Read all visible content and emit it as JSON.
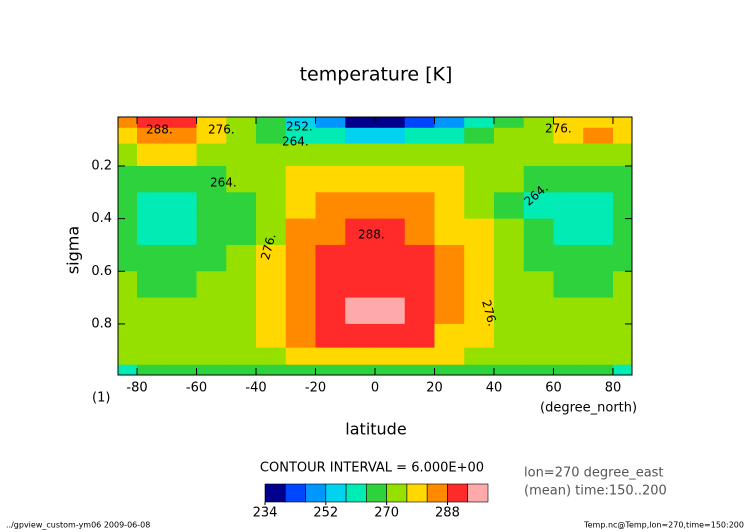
{
  "chart_data": {
    "type": "contour",
    "title": "temperature [K]",
    "x_label": "latitude",
    "x_unit": "(degree_north)",
    "y_label": "sigma",
    "y_unit": "(1)",
    "xlim": [
      -86.4,
      86.4
    ],
    "ylim": [
      0.014,
      0.994
    ],
    "y_inverted": true,
    "xticks": [
      -80,
      -60,
      -40,
      -20,
      0,
      20,
      40,
      60,
      80
    ],
    "yticks": [
      0.2,
      0.4,
      0.6,
      0.8
    ],
    "x": [
      -85,
      -75,
      -65,
      -55,
      -45,
      -35,
      -25,
      -15,
      -5,
      5,
      15,
      25,
      35,
      45,
      55,
      65,
      75,
      85
    ],
    "y": [
      0.03,
      0.08,
      0.15,
      0.25,
      0.35,
      0.45,
      0.55,
      0.65,
      0.75,
      0.85,
      0.93,
      0.98
    ],
    "z": [
      [
        282,
        290,
        288,
        280,
        274,
        266,
        256,
        246,
        238,
        236,
        240,
        250,
        258,
        266,
        272,
        278,
        280,
        276
      ],
      [
        280,
        286,
        284,
        278,
        272,
        266,
        262,
        258,
        256,
        256,
        258,
        262,
        266,
        270,
        274,
        280,
        282,
        276
      ],
      [
        274,
        276,
        276,
        274,
        272,
        272,
        272,
        270,
        270,
        270,
        270,
        272,
        272,
        272,
        272,
        270,
        270,
        270
      ],
      [
        268,
        264,
        264,
        266,
        270,
        274,
        276,
        276,
        276,
        276,
        276,
        276,
        274,
        270,
        266,
        264,
        264,
        268
      ],
      [
        266,
        262,
        262,
        264,
        268,
        274,
        280,
        282,
        284,
        284,
        282,
        278,
        274,
        268,
        262,
        261,
        262,
        266
      ],
      [
        266,
        263,
        263,
        265,
        269,
        275,
        282,
        286,
        288,
        288,
        286,
        280,
        276,
        270,
        264,
        262,
        263,
        266
      ],
      [
        268,
        266,
        266,
        268,
        270,
        276,
        284,
        289,
        290,
        290,
        289,
        282,
        276,
        271,
        268,
        266,
        266,
        268
      ],
      [
        270,
        268,
        268,
        270,
        272,
        277,
        286,
        290,
        292,
        292,
        290,
        283,
        277,
        272,
        270,
        268,
        268,
        270
      ],
      [
        272,
        270,
        270,
        271,
        273,
        277,
        286,
        291,
        295,
        295,
        291,
        283,
        277,
        273,
        271,
        270,
        270,
        272
      ],
      [
        271,
        270,
        270,
        271,
        273,
        276,
        283,
        288,
        292,
        292,
        288,
        281,
        276,
        273,
        271,
        270,
        270,
        271
      ],
      [
        272,
        272,
        272,
        272,
        272,
        274,
        276,
        278,
        280,
        280,
        278,
        276,
        274,
        272,
        272,
        272,
        272,
        272
      ],
      [
        260,
        264,
        266,
        266,
        266,
        266,
        266,
        266,
        266,
        266,
        266,
        266,
        266,
        266,
        266,
        266,
        264,
        260
      ]
    ],
    "levels": [
      234,
      240,
      246,
      252,
      258,
      264,
      270,
      276,
      282,
      288,
      294,
      300
    ],
    "colors": [
      "#00008c",
      "#0046ff",
      "#0096ff",
      "#00d2f0",
      "#00ecb4",
      "#2ed23c",
      "#96e000",
      "#ffd800",
      "#ff8a00",
      "#ff2a2a",
      "#ffaaaa"
    ],
    "colorbar_ticks": [
      234,
      252,
      270,
      288
    ],
    "contour_labels": [
      "288.",
      "276.",
      "252.",
      "264.",
      "276.",
      "264.",
      "264.",
      "288.",
      "276.",
      "276."
    ],
    "contour_interval": "CONTOUR INTERVAL = 6.000E+00",
    "notes": [
      "lon=270 degree_east",
      "(mean) time:150..200"
    ],
    "footer_left": "../gpview_custom-ym06  2009-06-08",
    "footer_right": "Temp.nc@Temp,lon=270,time=150:200"
  }
}
